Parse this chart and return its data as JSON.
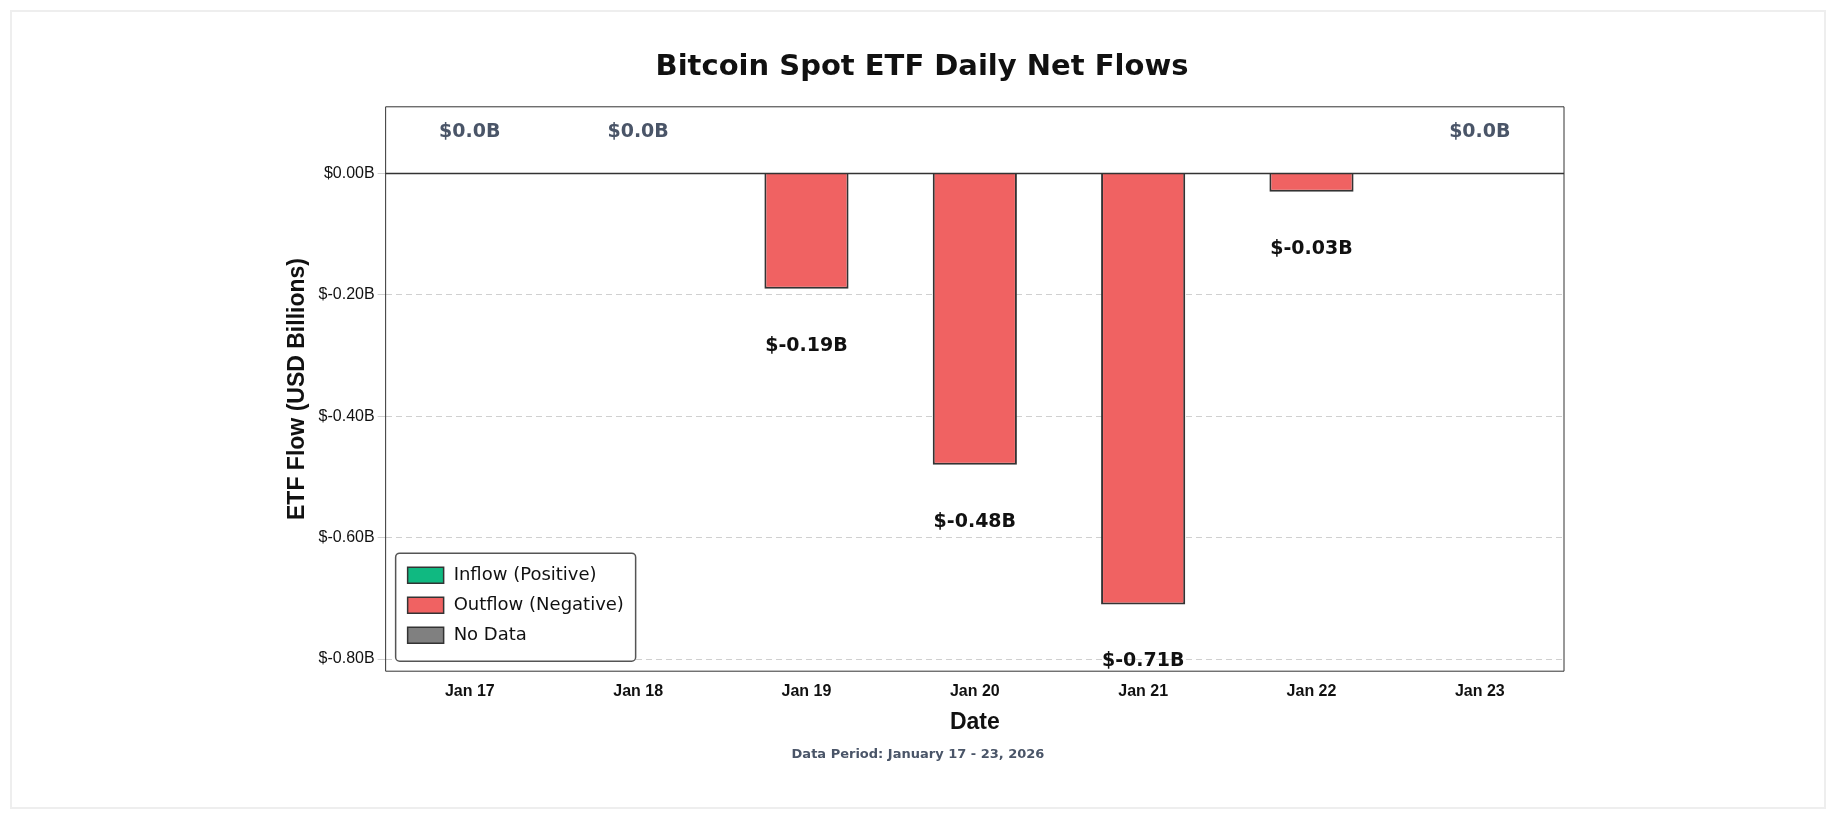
{
  "chart_data": {
    "type": "bar",
    "title": "Bitcoin Spot ETF Daily Net Flows",
    "xlabel": "Date",
    "ylabel": "ETF Flow (USD Billions)",
    "categories": [
      "Jan 17",
      "Jan 18",
      "Jan 19",
      "Jan 20",
      "Jan 21",
      "Jan 22",
      "Jan 23"
    ],
    "stacked": true,
    "series": [
      {
        "name": "Inflow (Positive)",
        "color": "#10b981",
        "values": [
          null,
          null,
          null,
          null,
          null,
          null,
          null
        ]
      },
      {
        "name": "Outflow (Negative)",
        "color": "#f06262",
        "values": [
          null,
          null,
          -0.19,
          -0.48,
          -0.71,
          -0.03,
          null
        ],
        "value_labels": [
          null,
          null,
          "$-0.19B",
          "$-0.48B",
          "$-0.71B",
          "$-0.03B",
          null
        ]
      },
      {
        "name": "No Data",
        "color": "#808080",
        "values": [
          0,
          0,
          null,
          null,
          null,
          null,
          0
        ],
        "value_labels": [
          "$0.0B",
          "$0.0B",
          null,
          null,
          null,
          null,
          "$0.0B"
        ]
      }
    ],
    "ylim": [
      -0.82,
      0.11
    ],
    "yticks": [
      {
        "value": 0,
        "label": "$0.00B"
      },
      {
        "value": -0.2,
        "label": "$-0.20B"
      },
      {
        "value": -0.4,
        "label": "$-0.40B"
      },
      {
        "value": -0.6,
        "label": "$-0.60B"
      },
      {
        "value": -0.8,
        "label": "$-0.80B"
      }
    ],
    "ref_lines": [
      {
        "axis": "y",
        "value": 0,
        "color": "#333333"
      }
    ],
    "grid": "y",
    "legend": "bottom left",
    "annotations": [
      "Data Period: January 17 - 23, 2026"
    ]
  }
}
